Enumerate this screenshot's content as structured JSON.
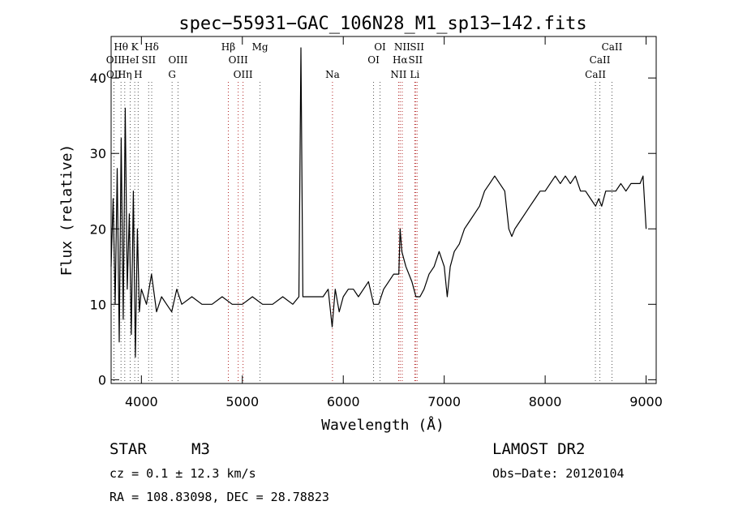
{
  "header": {
    "title": "spec−55931−GAC_106N28_M1_sp13−142.fits"
  },
  "chart_data": {
    "type": "line",
    "title": "spec−55931−GAC_106N28_M1_sp13−142.fits",
    "xlabel": "Wavelength (Å)",
    "ylabel": "Flux (relative)",
    "xlim": [
      3700,
      9100
    ],
    "ylim": [
      -0.5,
      45.5
    ],
    "x_ticks": [
      4000,
      5000,
      6000,
      7000,
      8000,
      9000
    ],
    "y_ticks": [
      0,
      10,
      20,
      30,
      40
    ],
    "grid": false,
    "series": [
      {
        "color": "#000000",
        "x": [
          3700,
          3720,
          3740,
          3760,
          3780,
          3800,
          3820,
          3840,
          3860,
          3880,
          3900,
          3920,
          3940,
          3960,
          3980,
          4000,
          4050,
          4100,
          4150,
          4200,
          4250,
          4300,
          4350,
          4400,
          4500,
          4600,
          4700,
          4800,
          4900,
          5000,
          5100,
          5200,
          5300,
          5400,
          5500,
          5560,
          5580,
          5600,
          5700,
          5800,
          5850,
          5890,
          5920,
          5960,
          6000,
          6050,
          6100,
          6150,
          6200,
          6250,
          6300,
          6350,
          6400,
          6450,
          6500,
          6550,
          6563,
          6580,
          6620,
          6680,
          6720,
          6760,
          6800,
          6850,
          6900,
          6950,
          7000,
          7030,
          7060,
          7100,
          7150,
          7200,
          7250,
          7300,
          7350,
          7400,
          7450,
          7500,
          7550,
          7600,
          7640,
          7670,
          7700,
          7750,
          7800,
          7850,
          7900,
          7950,
          8000,
          8050,
          8100,
          8150,
          8200,
          8250,
          8300,
          8350,
          8400,
          8450,
          8500,
          8530,
          8560,
          8600,
          8650,
          8700,
          8750,
          8800,
          8850,
          8900,
          8940,
          8970,
          9000
        ],
        "y": [
          15,
          24,
          10,
          28,
          5,
          32,
          8,
          36,
          12,
          22,
          6,
          25,
          3,
          20,
          9,
          12,
          10,
          14,
          9,
          11,
          10,
          9,
          12,
          10,
          11,
          10,
          10,
          11,
          10,
          10,
          11,
          10,
          10,
          11,
          10,
          11,
          44,
          11,
          11,
          11,
          12,
          7,
          12,
          9,
          11,
          12,
          12,
          11,
          12,
          13,
          10,
          10,
          12,
          13,
          14,
          14,
          20,
          17,
          15,
          13,
          11,
          11,
          12,
          14,
          15,
          17,
          15,
          11,
          15,
          17,
          18,
          20,
          21,
          22,
          23,
          25,
          26,
          27,
          26,
          25,
          20,
          19,
          20,
          21,
          22,
          23,
          24,
          25,
          25,
          26,
          27,
          26,
          27,
          26,
          27,
          25,
          25,
          24,
          23,
          24,
          23,
          25,
          25,
          25,
          26,
          25,
          26,
          26,
          26,
          27,
          20
        ]
      }
    ],
    "line_labels": [
      {
        "text": "Hθ",
        "x": 3798,
        "row": 1
      },
      {
        "text": "K",
        "x": 3934,
        "row": 1
      },
      {
        "text": "Hδ",
        "x": 4102,
        "row": 1
      },
      {
        "text": "Hβ",
        "x": 4861,
        "row": 1
      },
      {
        "text": "Mg",
        "x": 5175,
        "row": 1
      },
      {
        "text": "OI",
        "x": 6364,
        "row": 1
      },
      {
        "text": "NII",
        "x": 6584,
        "row": 1
      },
      {
        "text": "SII",
        "x": 6731,
        "row": 1
      },
      {
        "text": "CaII",
        "x": 8662,
        "row": 1
      },
      {
        "text": "OII",
        "x": 3727,
        "row": 2
      },
      {
        "text": "HeI",
        "x": 3889,
        "row": 2
      },
      {
        "text": "SII",
        "x": 4072,
        "row": 2
      },
      {
        "text": "OIII",
        "x": 4363,
        "row": 2
      },
      {
        "text": "OIII",
        "x": 4959,
        "row": 2
      },
      {
        "text": "OI",
        "x": 6300,
        "row": 2
      },
      {
        "text": "Hα",
        "x": 6563,
        "row": 2
      },
      {
        "text": "SII",
        "x": 6716,
        "row": 2
      },
      {
        "text": "CaII",
        "x": 8542,
        "row": 2
      },
      {
        "text": "OII",
        "x": 3729,
        "row": 3
      },
      {
        "text": "Hη",
        "x": 3835,
        "row": 3
      },
      {
        "text": "H",
        "x": 3968,
        "row": 3
      },
      {
        "text": "G",
        "x": 4304,
        "row": 3
      },
      {
        "text": "OIII",
        "x": 5007,
        "row": 3
      },
      {
        "text": "Na",
        "x": 5893,
        "row": 3
      },
      {
        "text": "NII",
        "x": 6548,
        "row": 3
      },
      {
        "text": "Li",
        "x": 6708,
        "row": 3
      },
      {
        "text": "CaII",
        "x": 8498,
        "row": 3
      }
    ]
  },
  "footer": {
    "object_type": "STAR",
    "subclass": "M3",
    "survey": "LAMOST DR2",
    "redshift": "cz = 0.1 ± 12.3 km/s",
    "obs_date": "Obs−Date: 20120104",
    "coords": "RA = 108.83098, DEC =  28.78823"
  }
}
